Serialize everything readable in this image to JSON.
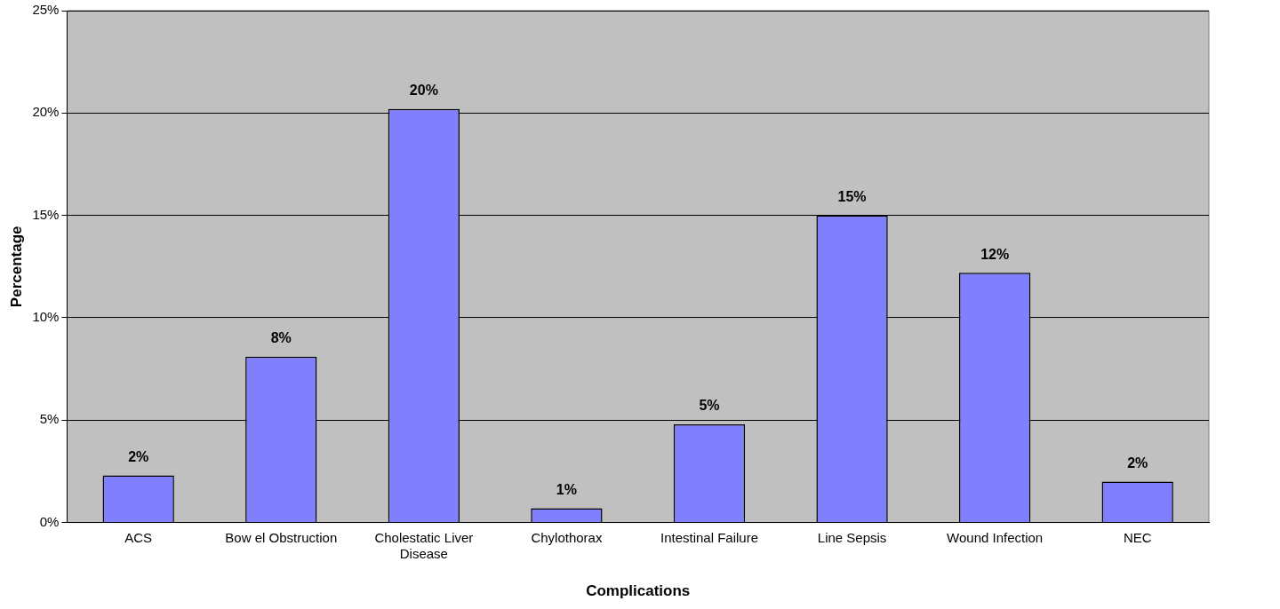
{
  "chart_data": {
    "type": "bar",
    "categories": [
      "ACS",
      "Bow el Obstruction",
      "Cholestatic Liver Disease",
      "Chylothorax",
      "Intestinal Failure",
      "Line Sepsis",
      "Wound Infection",
      "NEC"
    ],
    "values": [
      2.3,
      8.1,
      20.2,
      0.7,
      4.8,
      15.0,
      12.2,
      2.0
    ],
    "value_labels": [
      "2%",
      "8%",
      "20%",
      "1%",
      "5%",
      "15%",
      "12%",
      "2%"
    ],
    "color": "#8080ff",
    "xlabel": "Complications",
    "ylabel": "Percentage",
    "ylim": [
      0,
      25
    ],
    "yticks": [
      {
        "value": 0,
        "label": "0%"
      },
      {
        "value": 5,
        "label": "5%"
      },
      {
        "value": 10,
        "label": "10%"
      },
      {
        "value": 15,
        "label": "15%"
      },
      {
        "value": 20,
        "label": "20%"
      },
      {
        "value": 25,
        "label": "25%"
      }
    ],
    "grid": "y",
    "legend": false
  }
}
